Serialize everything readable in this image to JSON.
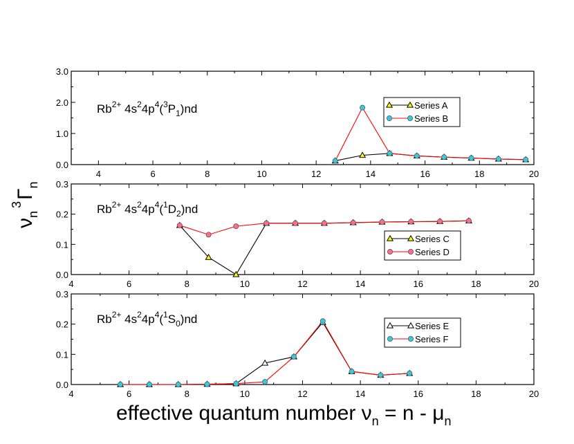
{
  "figure": {
    "ylabel": {
      "base": "ν",
      "sub1": "n",
      "sup": "3",
      "gamma": "Γ",
      "sub2": "n"
    },
    "xlabel": {
      "text": "effective quantum number  ",
      "nu": "ν",
      "nsub": "n",
      "mid": " = n - ",
      "mu": "μ",
      "musub": "n"
    }
  },
  "chart_data": [
    {
      "type": "line",
      "title_parts": {
        "el": "Rb",
        "charge": "2+",
        "a": " 4s",
        "a_sup": "2",
        "b": "4p",
        "b_sup": "4",
        "c": "(",
        "c_sup": "3",
        "d": "P",
        "d_sub": "1",
        "e": ")nd"
      },
      "xlim": [
        3,
        20
      ],
      "ylim": [
        0,
        3
      ],
      "x_ticks": [
        4,
        6,
        8,
        10,
        12,
        14,
        16,
        18,
        20
      ],
      "y_ticks": [
        0,
        1,
        2,
        3
      ],
      "x_tick_labels": [
        "4",
        "6",
        "8",
        "10",
        "12",
        "14",
        "16",
        "18",
        "20"
      ],
      "y_tick_labels": [
        "0.0",
        "1.0",
        "2.0",
        "3.0"
      ],
      "legend_position": "top-right",
      "series": [
        {
          "name": "Series A",
          "marker": "triangle",
          "line_color": "#000000",
          "marker_color": "#ffff00",
          "x": [
            12.7,
            13.7,
            14.7,
            15.7,
            16.7,
            17.7,
            18.7,
            19.7
          ],
          "y": [
            0.12,
            0.3,
            0.36,
            0.28,
            0.24,
            0.21,
            0.18,
            0.16
          ]
        },
        {
          "name": "Series B",
          "marker": "circle",
          "line_color": "#ff0000",
          "marker_color": "#33ccdd",
          "x": [
            12.7,
            13.7,
            14.7,
            15.7,
            16.7,
            17.7,
            18.7,
            19.7
          ],
          "y": [
            0.12,
            1.83,
            0.36,
            0.28,
            0.24,
            0.21,
            0.18,
            0.16
          ]
        }
      ]
    },
    {
      "type": "line",
      "title_parts": {
        "el": "Rb",
        "charge": "2+",
        "a": " 4s",
        "a_sup": "2",
        "b": "4p",
        "b_sup": "4",
        "c": "(",
        "c_sup": "1",
        "d": "D",
        "d_sub": "2",
        "e": ")nd"
      },
      "xlim": [
        4,
        20
      ],
      "ylim": [
        0,
        0.3
      ],
      "x_ticks": [
        4,
        6,
        8,
        10,
        12,
        14,
        16,
        18,
        20
      ],
      "y_ticks": [
        0,
        0.1,
        0.2,
        0.3
      ],
      "x_tick_labels": [
        "4",
        "6",
        "8",
        "10",
        "12",
        "14",
        "16",
        "18",
        "20"
      ],
      "y_tick_labels": [
        "0.0",
        "0.1",
        "0.2",
        "0.3"
      ],
      "legend_position": "bottom-right",
      "series": [
        {
          "name": "Series C",
          "marker": "triangle",
          "line_color": "#000000",
          "marker_color": "#ffff00",
          "x": [
            7.75,
            8.75,
            9.7,
            10.75,
            11.75,
            12.75,
            13.75,
            14.75,
            15.75,
            16.75,
            17.75
          ],
          "y": [
            0.163,
            0.057,
            0.0,
            0.17,
            0.17,
            0.17,
            0.172,
            0.174,
            0.175,
            0.176,
            0.178
          ]
        },
        {
          "name": "Series D",
          "marker": "circle",
          "line_color": "#ff0000",
          "marker_color": "#ff6b8a",
          "x": [
            7.75,
            8.75,
            9.7,
            10.75,
            11.75,
            12.75,
            13.75,
            14.75,
            15.75,
            16.75,
            17.75
          ],
          "y": [
            0.163,
            0.132,
            0.16,
            0.17,
            0.17,
            0.17,
            0.172,
            0.174,
            0.175,
            0.176,
            0.178
          ]
        }
      ]
    },
    {
      "type": "line",
      "title_parts": {
        "el": "Rb",
        "charge": "2+",
        "a": " 4s",
        "a_sup": "2",
        "b": "4p",
        "b_sup": "4",
        "c": "(",
        "c_sup": "1",
        "d": "S",
        "d_sub": "0",
        "e": ")nd"
      },
      "xlim": [
        4,
        20
      ],
      "ylim": [
        0,
        0.3
      ],
      "x_ticks": [
        4,
        6,
        8,
        10,
        12,
        14,
        16,
        18,
        20
      ],
      "y_ticks": [
        0,
        0.1,
        0.2,
        0.3
      ],
      "x_tick_labels": [
        "4",
        "6",
        "8",
        "10",
        "12",
        "14",
        "16",
        "18",
        "20"
      ],
      "y_tick_labels": [
        "0.0",
        "0.1",
        "0.2",
        "0.3"
      ],
      "legend_position": "right",
      "series": [
        {
          "name": "Series E",
          "marker": "triangle",
          "line_color": "#000000",
          "marker_color": "#ffffff",
          "x": [
            5.7,
            6.7,
            7.7,
            8.7,
            9.7,
            10.7,
            11.7,
            12.7,
            13.7,
            14.7,
            15.7
          ],
          "y": [
            0.0,
            0.0,
            0.0,
            0.001,
            0.003,
            0.071,
            0.092,
            0.206,
            0.043,
            0.031,
            0.037
          ]
        },
        {
          "name": "Series F",
          "marker": "circle",
          "line_color": "#ff0000",
          "marker_color": "#33ccdd",
          "x": [
            5.7,
            6.7,
            7.7,
            8.7,
            9.7,
            10.7,
            11.7,
            12.7,
            13.7,
            14.7,
            15.7
          ],
          "y": [
            0.0,
            0.0,
            0.0,
            0.001,
            0.003,
            0.009,
            0.092,
            0.21,
            0.043,
            0.031,
            0.037
          ]
        }
      ]
    }
  ]
}
